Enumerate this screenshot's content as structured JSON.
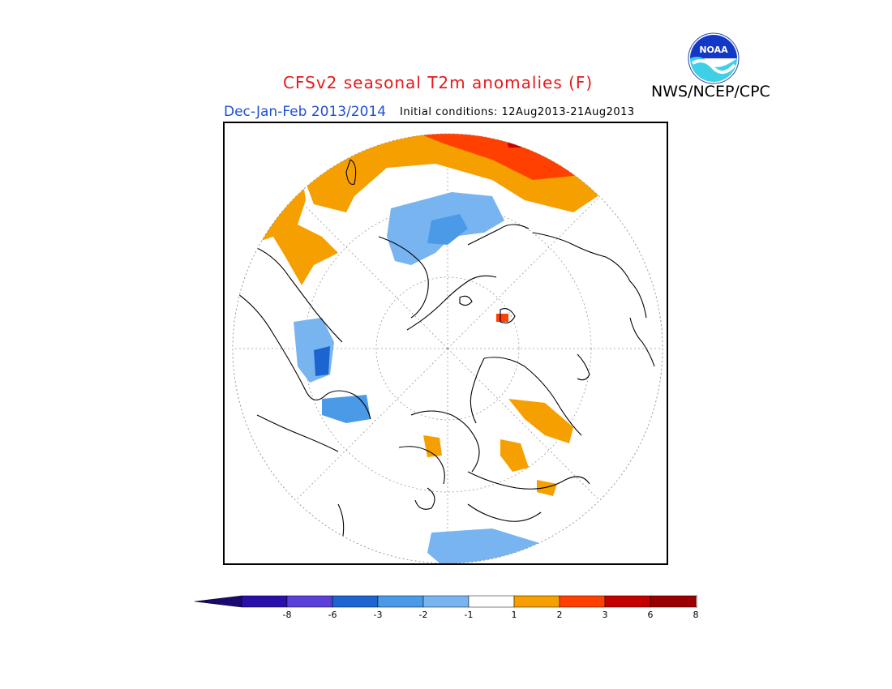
{
  "header": {
    "title": "CFSv2 seasonal T2m anomalies (F)",
    "agency": "NWS/NCEP/CPC",
    "season": "Dec-Jan-Feb 2013/2014",
    "initial_conditions": "Initial conditions: 12Aug2013-21Aug2013",
    "logo_text": "NOAA"
  },
  "colors": {
    "title": "#e41a1c",
    "season": "#1f4fd6",
    "warm1": "#f5a000",
    "warm2": "#ff4000",
    "warm3": "#c40000",
    "cool1": "#78b4f0",
    "cool2": "#4a9ae8"
  },
  "legend": {
    "bins": [
      {
        "label": "-8",
        "color": "#2a0fa8"
      },
      {
        "label": "-6",
        "color": "#5a3fd8"
      },
      {
        "label": "-3",
        "color": "#1c64d0"
      },
      {
        "label": "-2",
        "color": "#4a9ae8"
      },
      {
        "label": "-1",
        "color": "#78b4f0"
      },
      {
        "label": "",
        "color": "#ffffff"
      },
      {
        "label": "1",
        "color": "#f5a000"
      },
      {
        "label": "2",
        "color": "#ff4000"
      },
      {
        "label": "3",
        "color": "#c40000"
      },
      {
        "label": "6",
        "color": "#9a0000"
      },
      {
        "label": "8",
        "color": "#c8a090"
      }
    ],
    "labels": [
      "-8",
      "-6",
      "-3",
      "-2",
      "-1",
      "1",
      "2",
      "3",
      "6",
      "8"
    ],
    "end_low_color": "#1a0a70",
    "end_high_color": "#7a5040"
  }
}
